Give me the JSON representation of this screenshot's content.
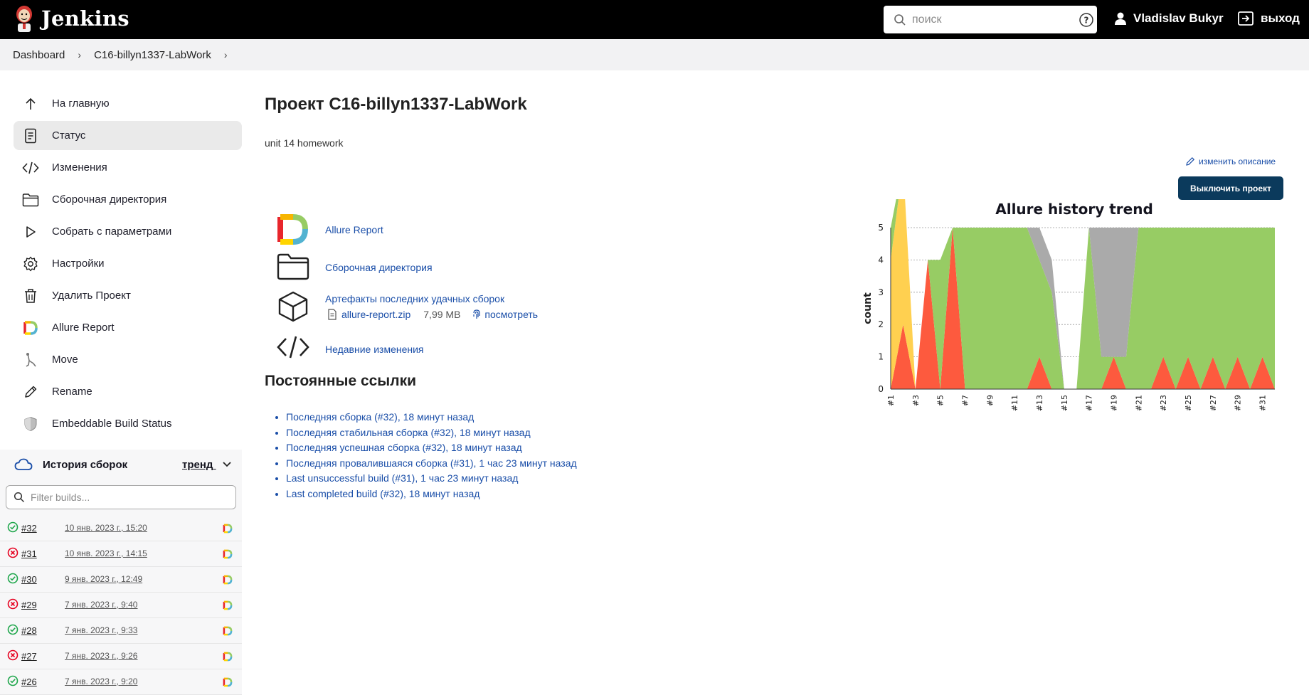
{
  "header": {
    "app_name": "Jenkins",
    "search_placeholder": "поиск",
    "user_name": "Vladislav Bukyr",
    "logout_label": "выход"
  },
  "breadcrumb": [
    "Dashboard",
    "C16-billyn1337-LabWork"
  ],
  "sidebar": {
    "items": [
      {
        "label": "На главную",
        "icon": "arrow-up-icon"
      },
      {
        "label": "Статус",
        "icon": "document-icon",
        "active": true
      },
      {
        "label": "Изменения",
        "icon": "code-icon"
      },
      {
        "label": "Сборочная директория",
        "icon": "folder-icon"
      },
      {
        "label": "Собрать с параметрами",
        "icon": "play-icon"
      },
      {
        "label": "Настройки",
        "icon": "gear-icon"
      },
      {
        "label": "Удалить Проект",
        "icon": "trash-icon"
      },
      {
        "label": "Allure Report",
        "icon": "allure-icon"
      },
      {
        "label": "Move",
        "icon": "move-icon"
      },
      {
        "label": "Rename",
        "icon": "pencil-icon"
      },
      {
        "label": "Embeddable Build Status",
        "icon": "shield-icon"
      }
    ]
  },
  "build_history": {
    "title": "История сборок",
    "trend_label": "тренд",
    "filter_placeholder": "Filter builds...",
    "builds": [
      {
        "number": "#32",
        "date": "10 янв. 2023 г., 15:20",
        "status": "success"
      },
      {
        "number": "#31",
        "date": "10 янв. 2023 г., 14:15",
        "status": "failure"
      },
      {
        "number": "#30",
        "date": "9 янв. 2023 г., 12:49",
        "status": "success"
      },
      {
        "number": "#29",
        "date": "7 янв. 2023 г., 9:40",
        "status": "failure"
      },
      {
        "number": "#28",
        "date": "7 янв. 2023 г., 9:33",
        "status": "success"
      },
      {
        "number": "#27",
        "date": "7 янв. 2023 г., 9:26",
        "status": "failure"
      },
      {
        "number": "#26",
        "date": "7 янв. 2023 г., 9:20",
        "status": "success"
      }
    ]
  },
  "main": {
    "title": "Проект C16-billyn1337-LabWork",
    "description": "unit 14 homework",
    "edit_description": "изменить описание",
    "disable_button": "Выключить проект",
    "links": {
      "allure": "Allure Report",
      "workspace": "Сборочная директория",
      "artifacts": "Артефакты последних удачных сборок",
      "artifact_file": "allure-report.zip",
      "artifact_size": "7,99 MB",
      "artifact_view": "посмотреть",
      "changes": "Недавние изменения"
    },
    "permalinks_title": "Постоянные ссылки",
    "permalinks": [
      "Последняя сборка (#32), 18 минут назад",
      "Последняя стабильная сборка (#32), 18 минут назад",
      "Последняя успешная сборка (#32), 18 минут назад",
      "Последняя провалившаяся сборка (#31), 1 час 23 минут назад",
      "Last unsuccessful build (#31), 1 час 23 минут назад",
      "Last completed build (#32), 18 минут назад"
    ]
  },
  "colors": {
    "passed": "#97cc64",
    "failed": "#fd5a3e",
    "broken": "#ffd050",
    "skipped": "#aaaaaa",
    "link": "#1a4ea8",
    "button": "#0b3a5c"
  },
  "chart_data": {
    "type": "area",
    "title": "Allure history trend",
    "ylabel": "count",
    "xlabel": "",
    "ylim": [
      0,
      5
    ],
    "yticks": [
      0,
      1,
      2,
      3,
      4,
      5
    ],
    "x": [
      1,
      2,
      3,
      4,
      5,
      6,
      7,
      8,
      9,
      10,
      11,
      12,
      13,
      14,
      15,
      16,
      17,
      18,
      19,
      20,
      21,
      22,
      23,
      24,
      25,
      26,
      27,
      28,
      29,
      30,
      31,
      32
    ],
    "xtick_labels": [
      "#1",
      "#3",
      "#5",
      "#7",
      "#9",
      "#11",
      "#13",
      "#15",
      "#17",
      "#19",
      "#21",
      "#23",
      "#25",
      "#27",
      "#29",
      "#31"
    ],
    "series": [
      {
        "name": "failed",
        "values": [
          0,
          2,
          0,
          4,
          0,
          5,
          0,
          0,
          0,
          0,
          0,
          0,
          1,
          0,
          0,
          0,
          0,
          0,
          1,
          0,
          0,
          0,
          1,
          0,
          1,
          0,
          1,
          0,
          1,
          0,
          1,
          0
        ]
      },
      {
        "name": "broken",
        "values": [
          4,
          5,
          0,
          0,
          0,
          0,
          0,
          0,
          0,
          0,
          0,
          0,
          0,
          0,
          0,
          0,
          0,
          0,
          0,
          0,
          0,
          0,
          0,
          0,
          0,
          0,
          0,
          0,
          0,
          0,
          0,
          0
        ]
      },
      {
        "name": "passed",
        "values": [
          1,
          0,
          0,
          0,
          4,
          0,
          5,
          5,
          5,
          5,
          5,
          5,
          3,
          3,
          0,
          0,
          5,
          1,
          0,
          1,
          5,
          5,
          4,
          5,
          4,
          5,
          4,
          5,
          4,
          5,
          4,
          5
        ]
      },
      {
        "name": "skipped",
        "values": [
          0,
          0,
          0,
          0,
          0,
          0,
          0,
          0,
          0,
          0,
          0,
          0,
          1,
          1,
          0,
          0,
          0,
          4,
          4,
          4,
          0,
          0,
          0,
          0,
          0,
          0,
          0,
          0,
          0,
          0,
          0,
          0
        ]
      }
    ],
    "grid": true,
    "legend": "none"
  }
}
